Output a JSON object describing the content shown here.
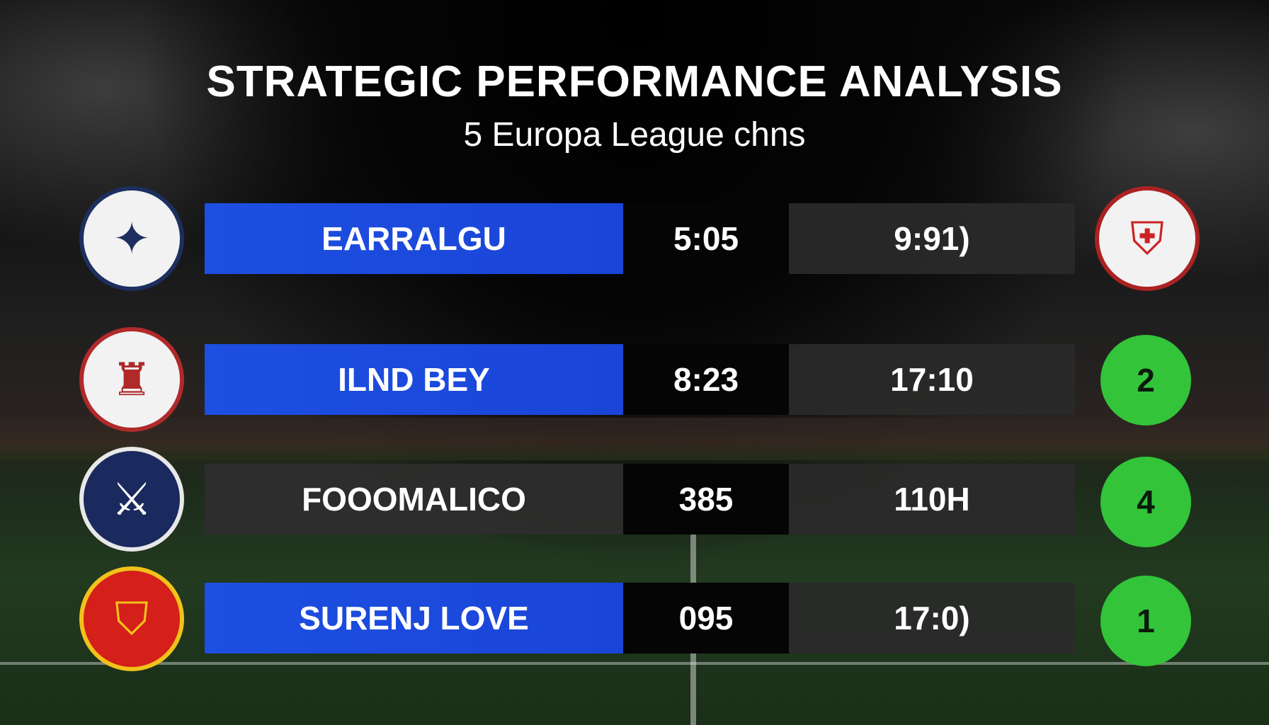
{
  "header": {
    "title": "STRATEGIC PERFORMANCE ANALYSIS",
    "subtitle": "5 Europa League chns"
  },
  "colors": {
    "accent_blue": "#1d4fe0",
    "rank_green": "#33c43a",
    "dark_cell": "#050505",
    "gray_cell": "#2d2d2d"
  },
  "rows": [
    {
      "team": "EARRALGU",
      "highlight": true,
      "value1": "5:05",
      "value2": "9:91)",
      "left_logo": "crest-icon",
      "right": {
        "type": "crest",
        "icon": "crest-icon"
      }
    },
    {
      "team": "ILND BEY",
      "highlight": true,
      "value1": "8:23",
      "value2": "17:10",
      "left_logo": "crest-icon",
      "right": {
        "type": "rank",
        "value": "2"
      }
    },
    {
      "team": "FOOOMALICO",
      "highlight": false,
      "value1": "385",
      "value2": "110H",
      "left_logo": "crest-icon",
      "right": {
        "type": "rank",
        "value": "4"
      }
    },
    {
      "team": "SURENJ LOVE",
      "highlight": true,
      "value1": "095",
      "value2": "17:0)",
      "left_logo": "crest-icon",
      "right": {
        "type": "rank",
        "value": "1"
      }
    }
  ]
}
